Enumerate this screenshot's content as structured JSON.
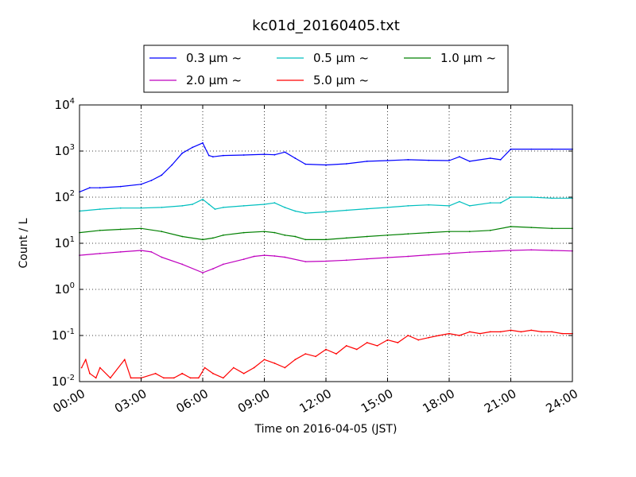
{
  "chart_data": {
    "type": "line",
    "title": "kc01d_20160405.txt",
    "xlabel": "Time on 2016-04-05 (JST)",
    "ylabel": "Count / L",
    "xlim_hours": [
      0,
      24
    ],
    "x_ticks": [
      {
        "hour": 0,
        "label": "00:00"
      },
      {
        "hour": 3,
        "label": "03:00"
      },
      {
        "hour": 6,
        "label": "06:00"
      },
      {
        "hour": 9,
        "label": "09:00"
      },
      {
        "hour": 12,
        "label": "12:00"
      },
      {
        "hour": 15,
        "label": "15:00"
      },
      {
        "hour": 18,
        "label": "18:00"
      },
      {
        "hour": 21,
        "label": "21:00"
      },
      {
        "hour": 24,
        "label": "24:00"
      }
    ],
    "y_scale": "log",
    "ylim": [
      0.01,
      10000
    ],
    "y_ticks": [
      {
        "value": 0.01,
        "base": "10",
        "exp": "-2"
      },
      {
        "value": 0.1,
        "base": "10",
        "exp": "-1"
      },
      {
        "value": 1,
        "base": "10",
        "exp": "0"
      },
      {
        "value": 10,
        "base": "10",
        "exp": "1"
      },
      {
        "value": 100,
        "base": "10",
        "exp": "2"
      },
      {
        "value": 1000,
        "base": "10",
        "exp": "3"
      },
      {
        "value": 10000,
        "base": "10",
        "exp": "4"
      }
    ],
    "grid": true,
    "legend_position": "top-center",
    "series": [
      {
        "name": "0.3 μm ~",
        "color": "#0000ff",
        "x": [
          0,
          0.5,
          1,
          2,
          3,
          3.5,
          4,
          4.5,
          5,
          5.5,
          6,
          6.1,
          6.3,
          6.5,
          7,
          8,
          9,
          9.5,
          10,
          10.5,
          11,
          12,
          13,
          14,
          15,
          16,
          17,
          18,
          18.5,
          19,
          20,
          20.5,
          21,
          22,
          23,
          24
        ],
        "y": [
          130,
          160,
          160,
          170,
          190,
          230,
          300,
          500,
          900,
          1200,
          1500,
          1200,
          800,
          750,
          800,
          820,
          850,
          830,
          950,
          700,
          520,
          500,
          530,
          600,
          620,
          650,
          630,
          620,
          750,
          600,
          700,
          650,
          1100,
          1100,
          1100,
          1100
        ]
      },
      {
        "name": "0.5 μm ~",
        "color": "#00bfbf",
        "x": [
          0,
          1,
          2,
          3,
          4,
          5,
          5.5,
          6,
          6.3,
          6.6,
          7,
          8,
          9,
          9.5,
          10,
          10.5,
          11,
          12,
          13,
          14,
          15,
          16,
          17,
          18,
          18.5,
          19,
          20,
          20.5,
          21,
          22,
          23,
          24
        ],
        "y": [
          50,
          55,
          58,
          58,
          60,
          65,
          70,
          90,
          70,
          55,
          60,
          65,
          70,
          75,
          60,
          50,
          45,
          48,
          52,
          56,
          60,
          65,
          68,
          65,
          80,
          65,
          75,
          75,
          100,
          100,
          95,
          95
        ]
      },
      {
        "name": "1.0 μm ~",
        "color": "#008000",
        "x": [
          0,
          1,
          2,
          3,
          4,
          5,
          6,
          6.5,
          7,
          8,
          9,
          9.5,
          10,
          10.5,
          11,
          12,
          13,
          14,
          15,
          16,
          17,
          18,
          19,
          20,
          21,
          22,
          23,
          24
        ],
        "y": [
          17,
          19,
          20,
          21,
          18,
          14,
          12,
          13,
          15,
          17,
          18,
          17,
          15,
          14,
          12,
          12,
          13,
          14,
          15,
          16,
          17,
          18,
          18,
          19,
          23,
          22,
          21,
          21
        ]
      },
      {
        "name": "2.0 μm ~",
        "color": "#bf00bf",
        "x": [
          0,
          1,
          2,
          3,
          3.5,
          4,
          5,
          6,
          6.5,
          7,
          8,
          8.5,
          9,
          9.5,
          10,
          11,
          12,
          13,
          14,
          15,
          16,
          17,
          18,
          19,
          20,
          21,
          22,
          23,
          24
        ],
        "y": [
          5.5,
          6,
          6.5,
          7,
          6.5,
          5,
          3.5,
          2.3,
          2.8,
          3.5,
          4.5,
          5.2,
          5.5,
          5.3,
          5,
          4,
          4.1,
          4.3,
          4.6,
          4.9,
          5.2,
          5.6,
          6,
          6.4,
          6.7,
          7,
          7.2,
          7,
          6.8
        ]
      },
      {
        "name": "5.0 μm ~",
        "color": "#ff0000",
        "x": [
          0.1,
          0.3,
          0.5,
          0.8,
          1.0,
          1.5,
          2.2,
          2.5,
          3.0,
          3.7,
          4.1,
          4.6,
          5.0,
          5.4,
          5.8,
          6.1,
          6.5,
          7.0,
          7.5,
          8.0,
          8.5,
          9.0,
          9.5,
          10.0,
          10.5,
          11.0,
          11.5,
          12.0,
          12.5,
          13.0,
          13.5,
          14.0,
          14.5,
          15.0,
          15.5,
          16.0,
          16.5,
          17.0,
          17.5,
          18.0,
          18.5,
          19.0,
          19.5,
          20.0,
          20.5,
          21.0,
          21.5,
          22.0,
          22.5,
          23.0,
          23.5,
          24.0
        ],
        "y": [
          0.02,
          0.03,
          0.015,
          0.012,
          0.02,
          0.012,
          0.03,
          0.012,
          0.012,
          0.015,
          0.012,
          0.012,
          0.015,
          0.012,
          0.012,
          0.02,
          0.015,
          0.012,
          0.02,
          0.015,
          0.02,
          0.03,
          0.025,
          0.02,
          0.03,
          0.04,
          0.035,
          0.05,
          0.04,
          0.06,
          0.05,
          0.07,
          0.06,
          0.08,
          0.07,
          0.1,
          0.08,
          0.09,
          0.1,
          0.11,
          0.1,
          0.12,
          0.11,
          0.12,
          0.12,
          0.13,
          0.12,
          0.13,
          0.12,
          0.12,
          0.11,
          0.11
        ]
      }
    ]
  }
}
